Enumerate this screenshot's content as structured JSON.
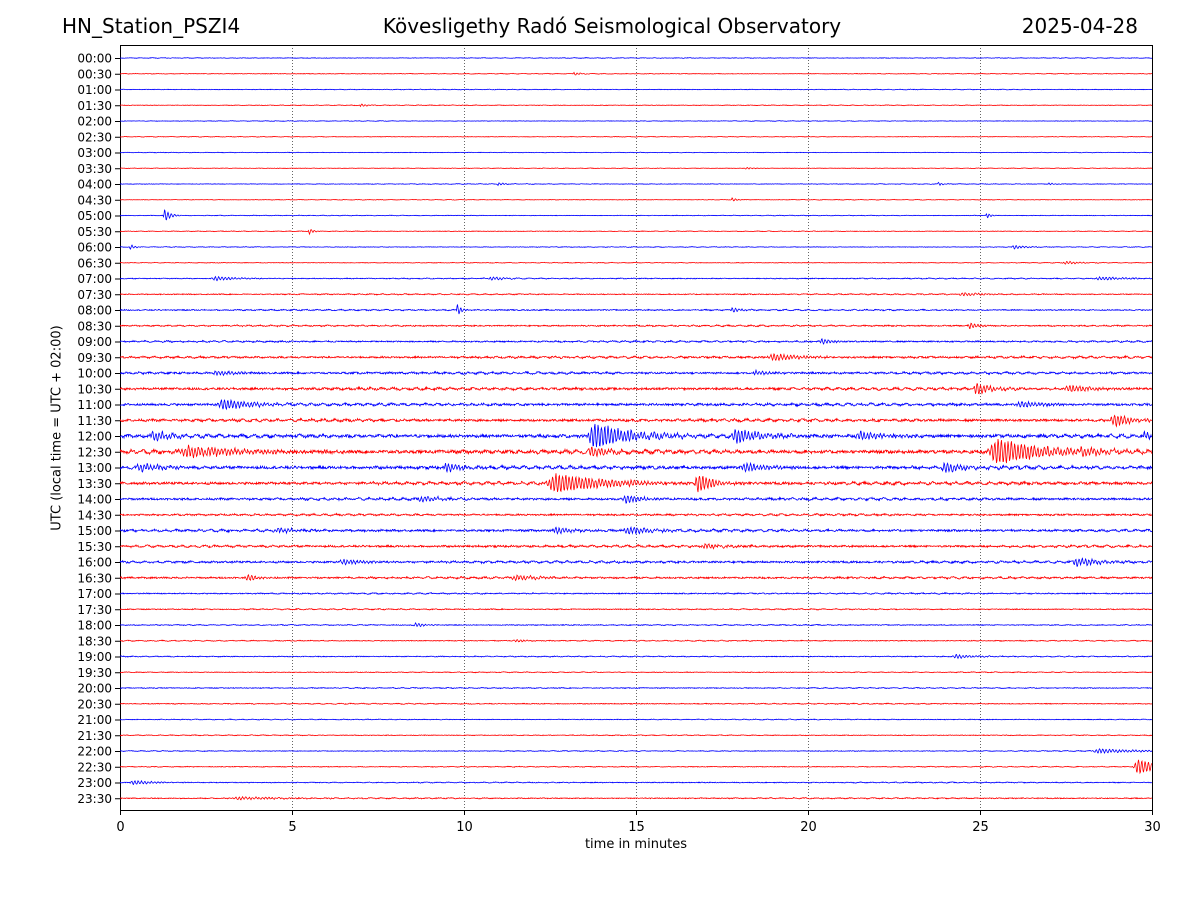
{
  "header": {
    "station": "HN_Station_PSZI4",
    "observatory": "Kövesligethy Radó Seismological Observatory",
    "date": "2025-04-28"
  },
  "chart_data": {
    "type": "line",
    "title": "Kövesligethy Radó Seismological Observatory",
    "xlabel": "time in minutes",
    "ylabel": "UTC (local time = UTC + 02:00)",
    "xlim": [
      0,
      30
    ],
    "xticks": [
      0,
      5,
      10,
      15,
      20,
      25,
      30
    ],
    "grid": "vertical dotted lines at 5-minute ticks",
    "colors": {
      "even_rows": "#0000ff",
      "odd_rows": "#ff0000"
    },
    "rows": [
      {
        "label": "00:00",
        "noise": 0.4,
        "events": []
      },
      {
        "label": "00:30",
        "noise": 0.4,
        "events": [
          [
            13.2,
            1.4,
            0.2
          ]
        ]
      },
      {
        "label": "01:00",
        "noise": 0.4,
        "events": []
      },
      {
        "label": "01:30",
        "noise": 0.4,
        "events": [
          [
            7.0,
            1.2,
            0.2
          ]
        ]
      },
      {
        "label": "02:00",
        "noise": 0.35,
        "events": []
      },
      {
        "label": "02:30",
        "noise": 0.35,
        "events": []
      },
      {
        "label": "03:00",
        "noise": 0.35,
        "events": []
      },
      {
        "label": "03:30",
        "noise": 0.35,
        "events": [
          [
            18.2,
            1.0,
            0.2
          ]
        ]
      },
      {
        "label": "04:00",
        "noise": 0.4,
        "events": [
          [
            11.0,
            1.5,
            0.15
          ],
          [
            23.8,
            1.4,
            0.15
          ],
          [
            27.0,
            1.0,
            0.15
          ]
        ]
      },
      {
        "label": "04:30",
        "noise": 0.35,
        "events": [
          [
            17.8,
            2.0,
            0.1
          ]
        ]
      },
      {
        "label": "05:00",
        "noise": 0.4,
        "events": [
          [
            1.3,
            6.0,
            0.15
          ],
          [
            25.2,
            2.5,
            0.1
          ]
        ]
      },
      {
        "label": "05:30",
        "noise": 0.4,
        "events": [
          [
            5.5,
            3.0,
            0.1
          ]
        ]
      },
      {
        "label": "06:00",
        "noise": 0.4,
        "events": [
          [
            0.3,
            2.5,
            0.1
          ],
          [
            26.0,
            1.8,
            0.3
          ]
        ]
      },
      {
        "label": "06:30",
        "noise": 0.4,
        "events": [
          [
            27.5,
            1.4,
            0.4
          ]
        ]
      },
      {
        "label": "07:00",
        "noise": 0.6,
        "events": [
          [
            2.8,
            2.0,
            0.6
          ],
          [
            10.8,
            2.0,
            0.3
          ],
          [
            28.5,
            1.5,
            0.8
          ]
        ]
      },
      {
        "label": "07:30",
        "noise": 0.7,
        "events": [
          [
            24.5,
            1.5,
            0.6
          ]
        ]
      },
      {
        "label": "08:00",
        "noise": 0.8,
        "events": [
          [
            9.8,
            6.0,
            0.1
          ],
          [
            17.8,
            2.5,
            0.2
          ]
        ]
      },
      {
        "label": "08:30",
        "noise": 0.9,
        "events": [
          [
            24.7,
            3.0,
            0.2
          ]
        ]
      },
      {
        "label": "09:00",
        "noise": 1.0,
        "events": [
          [
            20.4,
            2.5,
            0.3
          ]
        ]
      },
      {
        "label": "09:30",
        "noise": 1.3,
        "events": [
          [
            19.0,
            3.0,
            0.9
          ]
        ]
      },
      {
        "label": "10:00",
        "noise": 1.4,
        "events": [
          [
            2.8,
            2.0,
            0.6
          ],
          [
            18.5,
            2.0,
            0.5
          ]
        ]
      },
      {
        "label": "10:30",
        "noise": 1.6,
        "events": [
          [
            24.9,
            6.0,
            0.4
          ],
          [
            27.6,
            3.0,
            0.7
          ]
        ]
      },
      {
        "label": "11:00",
        "noise": 1.6,
        "events": [
          [
            3.0,
            5.0,
            0.8
          ],
          [
            26.2,
            3.0,
            0.6
          ]
        ]
      },
      {
        "label": "11:30",
        "noise": 1.7,
        "events": [
          [
            28.9,
            6.0,
            0.5
          ]
        ]
      },
      {
        "label": "12:00",
        "noise": 2.2,
        "events": [
          [
            13.8,
            12.0,
            1.0
          ],
          [
            17.9,
            7.0,
            0.7
          ],
          [
            21.5,
            4.0,
            0.7
          ],
          [
            1.0,
            4.0,
            0.6
          ],
          [
            29.8,
            3.0,
            0.4
          ]
        ]
      },
      {
        "label": "12:30",
        "noise": 2.4,
        "events": [
          [
            25.5,
            12.0,
            1.3
          ],
          [
            2.0,
            5.0,
            1.6
          ],
          [
            13.7,
            5.0,
            0.5
          ],
          [
            28.0,
            3.0,
            0.6
          ]
        ]
      },
      {
        "label": "13:00",
        "noise": 2.0,
        "events": [
          [
            0.6,
            4.0,
            0.6
          ],
          [
            9.5,
            4.0,
            0.5
          ],
          [
            24.0,
            5.0,
            0.5
          ],
          [
            18.2,
            4.0,
            0.6
          ]
        ]
      },
      {
        "label": "13:30",
        "noise": 1.8,
        "events": [
          [
            12.7,
            9.0,
            1.4
          ],
          [
            16.8,
            9.0,
            0.5
          ],
          [
            14.8,
            4.0,
            0.4
          ]
        ]
      },
      {
        "label": "14:00",
        "noise": 1.5,
        "events": [
          [
            14.7,
            4.0,
            0.5
          ],
          [
            8.8,
            2.5,
            0.6
          ]
        ]
      },
      {
        "label": "14:30",
        "noise": 1.2,
        "events": []
      },
      {
        "label": "15:00",
        "noise": 1.5,
        "events": [
          [
            14.8,
            3.5,
            0.8
          ],
          [
            12.7,
            3.0,
            0.5
          ],
          [
            4.6,
            2.5,
            0.5
          ]
        ]
      },
      {
        "label": "15:30",
        "noise": 1.4,
        "events": [
          [
            17.0,
            2.0,
            0.6
          ]
        ]
      },
      {
        "label": "16:00",
        "noise": 1.4,
        "events": [
          [
            27.8,
            4.0,
            0.6
          ],
          [
            6.5,
            2.5,
            0.6
          ]
        ]
      },
      {
        "label": "16:30",
        "noise": 1.2,
        "events": [
          [
            11.5,
            2.5,
            0.6
          ],
          [
            3.7,
            3.0,
            0.3
          ]
        ]
      },
      {
        "label": "17:00",
        "noise": 0.8,
        "events": []
      },
      {
        "label": "17:30",
        "noise": 0.7,
        "events": []
      },
      {
        "label": "18:00",
        "noise": 0.6,
        "events": [
          [
            8.6,
            2.0,
            0.3
          ]
        ]
      },
      {
        "label": "18:30",
        "noise": 0.6,
        "events": [
          [
            11.5,
            1.5,
            0.3
          ]
        ]
      },
      {
        "label": "19:00",
        "noise": 0.6,
        "events": [
          [
            24.3,
            1.8,
            0.5
          ]
        ]
      },
      {
        "label": "19:30",
        "noise": 0.5,
        "events": []
      },
      {
        "label": "20:00",
        "noise": 0.6,
        "events": []
      },
      {
        "label": "20:30",
        "noise": 0.6,
        "events": []
      },
      {
        "label": "21:00",
        "noise": 0.5,
        "events": []
      },
      {
        "label": "21:30",
        "noise": 0.5,
        "events": []
      },
      {
        "label": "22:00",
        "noise": 0.5,
        "events": [
          [
            28.5,
            2.0,
            1.2
          ]
        ]
      },
      {
        "label": "22:30",
        "noise": 0.5,
        "events": [
          [
            29.6,
            7.0,
            0.6
          ]
        ]
      },
      {
        "label": "23:00",
        "noise": 0.6,
        "events": [
          [
            0.4,
            1.8,
            0.6
          ]
        ]
      },
      {
        "label": "23:30",
        "noise": 0.7,
        "events": [
          [
            3.5,
            1.2,
            1.5
          ]
        ]
      }
    ]
  }
}
